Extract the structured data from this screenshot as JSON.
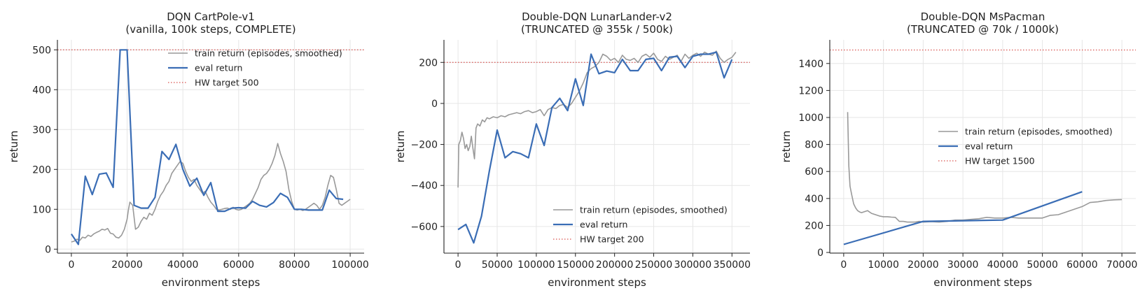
{
  "chart_data": [
    {
      "type": "line",
      "title": [
        "DQN  CartPole-v1",
        "(vanilla, 100k steps, COMPLETE)"
      ],
      "xlabel": "environment steps",
      "ylabel": "return",
      "xlim": [
        -5000,
        105000
      ],
      "ylim": [
        -10,
        525
      ],
      "xticks": [
        0,
        20000,
        40000,
        60000,
        80000,
        100000
      ],
      "yticks": [
        0,
        100,
        200,
        300,
        400,
        500
      ],
      "grid": true,
      "legend_position": "top-right",
      "target": {
        "name": "HW target 500",
        "value": 500,
        "color": "#d9534f"
      },
      "series": [
        {
          "name": "train return (episodes, smoothed)",
          "color": "#999999",
          "x": [
            0,
            1000,
            2000,
            3000,
            4000,
            5000,
            6000,
            7000,
            8000,
            9000,
            10000,
            11000,
            12000,
            13000,
            14000,
            15000,
            16000,
            17000,
            18000,
            19000,
            20000,
            20500,
            21000,
            22000,
            23000,
            24000,
            25000,
            26000,
            27000,
            28000,
            29000,
            30000,
            31000,
            32000,
            33000,
            34000,
            35000,
            36000,
            37000,
            38000,
            39000,
            40000,
            41000,
            42000,
            43000,
            44000,
            45000,
            46000,
            47000,
            48000,
            49000,
            50000,
            51000,
            52000,
            53000,
            54000,
            55000,
            56000,
            57000,
            58000,
            59000,
            60000,
            61000,
            62000,
            63000,
            64000,
            65000,
            66000,
            67000,
            68000,
            69000,
            70000,
            71000,
            72000,
            73000,
            74000,
            75000,
            76000,
            77000,
            78000,
            79000,
            80000,
            81000,
            82000,
            83000,
            84000,
            85000,
            86000,
            87000,
            88000,
            89000,
            90000,
            91000,
            92000,
            93000,
            94000,
            95000,
            96000,
            97000,
            98000,
            99000,
            100000
          ],
          "values": [
            18,
            20,
            25,
            22,
            30,
            28,
            35,
            32,
            38,
            42,
            45,
            50,
            48,
            52,
            40,
            38,
            30,
            28,
            35,
            50,
            75,
            100,
            118,
            110,
            50,
            55,
            70,
            80,
            75,
            90,
            85,
            100,
            120,
            135,
            145,
            160,
            170,
            190,
            200,
            210,
            220,
            215,
            195,
            180,
            170,
            175,
            160,
            150,
            140,
            145,
            130,
            118,
            110,
            100,
            98,
            100,
            102,
            103,
            100,
            105,
            100,
            98,
            100,
            105,
            110,
            115,
            125,
            140,
            155,
            175,
            185,
            190,
            200,
            215,
            235,
            265,
            240,
            220,
            195,
            150,
            120,
            100,
            98,
            100,
            97,
            100,
            105,
            110,
            115,
            110,
            100,
            110,
            130,
            160,
            185,
            180,
            150,
            115,
            110,
            115,
            120,
            125
          ]
        },
        {
          "name": "eval return",
          "color": "#3a6db5",
          "x": [
            0,
            2500,
            5000,
            7500,
            10000,
            12500,
            15000,
            17500,
            19000,
            20000,
            22500,
            25000,
            27500,
            30000,
            32500,
            35000,
            37500,
            40000,
            42500,
            45000,
            47500,
            50000,
            52500,
            55000,
            57500,
            60000,
            62500,
            65000,
            67500,
            70000,
            72500,
            75000,
            77500,
            80000,
            82500,
            85000,
            87500,
            90000,
            92500,
            95000,
            97500
          ],
          "values": [
            38,
            12,
            183,
            137,
            188,
            191,
            155,
            500,
            500,
            500,
            110,
            103,
            103,
            130,
            245,
            225,
            263,
            200,
            158,
            178,
            135,
            167,
            95,
            95,
            103,
            104,
            103,
            120,
            110,
            106,
            117,
            140,
            130,
            100,
            100,
            98,
            98,
            98,
            148,
            127,
            125
          ]
        }
      ]
    },
    {
      "type": "line",
      "title": [
        "Double-DQN  LunarLander-v2",
        "(TRUNCATED @ 355k / 500k)"
      ],
      "xlabel": "environment steps",
      "ylabel": "return",
      "xlim": [
        -18000,
        373000
      ],
      "ylim": [
        -730,
        310
      ],
      "xticks": [
        0,
        50000,
        100000,
        150000,
        200000,
        250000,
        300000,
        350000
      ],
      "yticks": [
        -600,
        -400,
        -200,
        0,
        200
      ],
      "grid": true,
      "legend_position": "bottom-right",
      "target": {
        "name": "HW target 200",
        "value": 200,
        "color": "#d9534f"
      },
      "series": [
        {
          "name": "train return (episodes, smoothed)",
          "color": "#999999",
          "x": [
            0,
            1000,
            3000,
            5000,
            7000,
            9000,
            11000,
            13000,
            15000,
            17000,
            19000,
            21000,
            23000,
            25000,
            28000,
            31000,
            34000,
            37000,
            40000,
            45000,
            50000,
            55000,
            60000,
            65000,
            70000,
            75000,
            80000,
            85000,
            90000,
            95000,
            100000,
            105000,
            110000,
            115000,
            120000,
            125000,
            130000,
            135000,
            140000,
            145000,
            150000,
            155000,
            160000,
            165000,
            170000,
            175000,
            180000,
            185000,
            190000,
            195000,
            200000,
            205000,
            210000,
            215000,
            220000,
            225000,
            230000,
            235000,
            240000,
            245000,
            250000,
            255000,
            260000,
            265000,
            270000,
            275000,
            280000,
            285000,
            290000,
            295000,
            300000,
            305000,
            310000,
            315000,
            320000,
            325000,
            330000,
            335000,
            340000,
            345000,
            350000,
            355000
          ],
          "values": [
            -410,
            -200,
            -180,
            -140,
            -170,
            -220,
            -200,
            -230,
            -210,
            -160,
            -220,
            -270,
            -120,
            -100,
            -110,
            -80,
            -90,
            -70,
            -75,
            -65,
            -70,
            -60,
            -65,
            -55,
            -50,
            -45,
            -50,
            -40,
            -35,
            -45,
            -40,
            -30,
            -60,
            -30,
            -20,
            -25,
            -10,
            -5,
            -20,
            0,
            30,
            60,
            100,
            150,
            170,
            180,
            200,
            240,
            230,
            210,
            220,
            200,
            235,
            215,
            210,
            220,
            200,
            230,
            240,
            225,
            245,
            215,
            205,
            230,
            215,
            225,
            235,
            205,
            240,
            220,
            235,
            245,
            230,
            250,
            240,
            235,
            255,
            220,
            200,
            215,
            225,
            250
          ]
        },
        {
          "name": "eval return",
          "color": "#3a6db5",
          "x": [
            0,
            10000,
            20000,
            30000,
            40000,
            50000,
            60000,
            70000,
            80000,
            90000,
            100000,
            110000,
            120000,
            130000,
            140000,
            150000,
            160000,
            170000,
            180000,
            190000,
            200000,
            210000,
            220000,
            230000,
            240000,
            250000,
            260000,
            270000,
            280000,
            290000,
            300000,
            310000,
            320000,
            330000,
            340000,
            350000
          ],
          "values": [
            -615,
            -590,
            -680,
            -550,
            -330,
            -130,
            -265,
            -235,
            -245,
            -265,
            -100,
            -205,
            -20,
            25,
            -35,
            120,
            -10,
            240,
            145,
            158,
            150,
            215,
            160,
            160,
            215,
            220,
            160,
            225,
            230,
            175,
            230,
            240,
            240,
            250,
            125,
            215
          ]
        }
      ]
    },
    {
      "type": "line",
      "title": [
        "Double-DQN  MsPacman",
        "(TRUNCATED @ 70k / 1000k)"
      ],
      "xlabel": "environment steps",
      "ylabel": "return",
      "xlim": [
        -3500,
        73500
      ],
      "ylim": [
        -5,
        1575
      ],
      "xticks": [
        0,
        10000,
        20000,
        30000,
        40000,
        50000,
        60000,
        70000
      ],
      "yticks": [
        0,
        200,
        400,
        600,
        800,
        1000,
        1200,
        1400
      ],
      "grid": true,
      "legend_position": "center-right",
      "target": {
        "name": "HW target 1500",
        "value": 1500,
        "color": "#d9534f"
      },
      "series": [
        {
          "name": "train return (episodes, smoothed)",
          "color": "#999999",
          "x": [
            1000,
            1300,
            1600,
            2000,
            2500,
            3000,
            3500,
            4000,
            4500,
            5000,
            6000,
            7000,
            8000,
            9000,
            10000,
            11000,
            12000,
            13000,
            14000,
            15000,
            16000,
            17000,
            18000,
            19000,
            20000,
            22000,
            24000,
            26000,
            28000,
            30000,
            32000,
            34000,
            36000,
            38000,
            40000,
            42000,
            44000,
            46000,
            48000,
            50000,
            52000,
            54000,
            56000,
            58000,
            60000,
            62000,
            64000,
            66000,
            68000,
            70000
          ],
          "values": [
            1040,
            640,
            490,
            430,
            360,
            330,
            310,
            300,
            295,
            300,
            310,
            290,
            280,
            270,
            265,
            265,
            262,
            260,
            230,
            230,
            225,
            225,
            225,
            230,
            225,
            228,
            225,
            230,
            240,
            240,
            245,
            250,
            260,
            255,
            255,
            260,
            255,
            255,
            255,
            255,
            275,
            280,
            300,
            320,
            340,
            370,
            375,
            385,
            390,
            392
          ]
        },
        {
          "name": "eval return",
          "color": "#3a6db5",
          "x": [
            0,
            20000,
            40000,
            60000
          ],
          "values": [
            60,
            230,
            240,
            450
          ]
        }
      ]
    }
  ]
}
